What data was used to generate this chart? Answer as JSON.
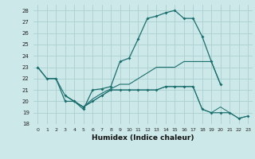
{
  "background_color": "#cde8e8",
  "grid_color": "#aacfcf",
  "line_color": "#1a6e6e",
  "xlabel": "Humidex (Indice chaleur)",
  "xlim": [
    -0.5,
    23.5
  ],
  "ylim": [
    18,
    28.5
  ],
  "yticks": [
    18,
    19,
    20,
    21,
    22,
    23,
    24,
    25,
    26,
    27,
    28
  ],
  "xticks": [
    0,
    1,
    2,
    3,
    4,
    5,
    6,
    7,
    8,
    9,
    10,
    11,
    12,
    13,
    14,
    15,
    16,
    17,
    18,
    19,
    20,
    21,
    22,
    23
  ],
  "series0_x": [
    0,
    1,
    2,
    3,
    4,
    5,
    6,
    7,
    8,
    9,
    10,
    11,
    12,
    13,
    14,
    15,
    16,
    17,
    18,
    19,
    20
  ],
  "series0_y": [
    23,
    22,
    22,
    20,
    20,
    19.3,
    21,
    21.1,
    21.3,
    23.5,
    23.8,
    25.5,
    27.3,
    27.5,
    27.8,
    28.0,
    27.3,
    27.3,
    25.7,
    23.5,
    21.5
  ],
  "series1_x": [
    0,
    1,
    2,
    3,
    4,
    5,
    6,
    7,
    8,
    9,
    10,
    11,
    12,
    13,
    14,
    15,
    16,
    17,
    18,
    19,
    20
  ],
  "series1_y": [
    23,
    22,
    22,
    20.5,
    20,
    19.5,
    20.2,
    20.7,
    21.1,
    21.5,
    21.5,
    22.0,
    22.5,
    23.0,
    23.0,
    23.0,
    23.5,
    23.5,
    23.5,
    23.5,
    21.5
  ],
  "series2_x": [
    3,
    4,
    5,
    6,
    7,
    8,
    9,
    10,
    11,
    12,
    13,
    14,
    15,
    16,
    17,
    18,
    19,
    20,
    21,
    22,
    23
  ],
  "series2_y": [
    20.5,
    20,
    19.5,
    20,
    20.5,
    21.0,
    21.0,
    21.0,
    21.0,
    21.0,
    21.0,
    21.3,
    21.3,
    21.3,
    21.3,
    19.3,
    19.0,
    19.0,
    19.0,
    18.5,
    18.7
  ],
  "series3_x": [
    3,
    4,
    5,
    6,
    7,
    8,
    9,
    10,
    11,
    12,
    13,
    14,
    15,
    16,
    17,
    18,
    19,
    20,
    22,
    23
  ],
  "series3_y": [
    20.5,
    20,
    19.5,
    20,
    20.5,
    21.0,
    21.0,
    21.0,
    21.0,
    21.0,
    21.0,
    21.3,
    21.3,
    21.3,
    21.3,
    19.3,
    19.0,
    19.5,
    18.5,
    18.7
  ]
}
